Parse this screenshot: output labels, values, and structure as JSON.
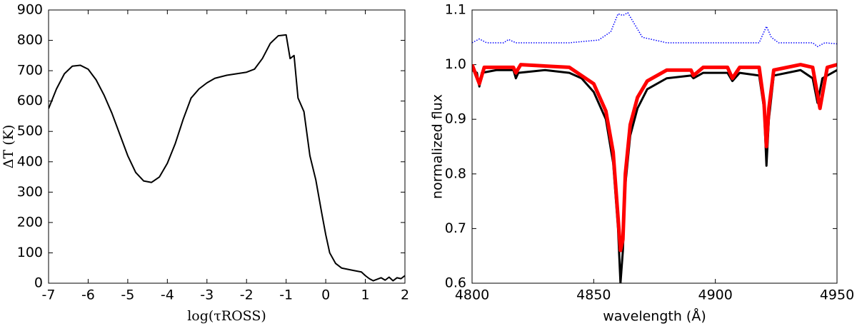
{
  "chart_data": [
    {
      "type": "line",
      "xlabel": "log(τROSS)",
      "ylabel": "ΔT (K)",
      "color": "#000000",
      "x": [
        -7,
        -6.8,
        -6.6,
        -6.4,
        -6.2,
        -6.0,
        -5.8,
        -5.6,
        -5.4,
        -5.2,
        -5.0,
        -4.8,
        -4.6,
        -4.4,
        -4.2,
        -4.0,
        -3.8,
        -3.6,
        -3.4,
        -3.2,
        -3.0,
        -2.8,
        -2.5,
        -2.0,
        -1.8,
        -1.6,
        -1.4,
        -1.2,
        -1.0,
        -0.9,
        -0.8,
        -0.7,
        -0.55,
        -0.4,
        -0.25,
        -0.1,
        0.0,
        0.1,
        0.25,
        0.4,
        0.7,
        0.9,
        1.0,
        1.1,
        1.2,
        1.4,
        1.5,
        1.6,
        1.7,
        1.8,
        1.9,
        2.0
      ],
      "values": [
        575,
        640,
        690,
        715,
        718,
        705,
        670,
        620,
        560,
        490,
        420,
        365,
        337,
        332,
        350,
        395,
        460,
        540,
        610,
        640,
        660,
        675,
        685,
        695,
        705,
        740,
        790,
        815,
        818,
        740,
        750,
        610,
        565,
        420,
        340,
        230,
        160,
        100,
        65,
        50,
        42,
        37,
        25,
        15,
        8,
        18,
        10,
        20,
        8,
        18,
        15,
        25
      ],
      "xlim": [
        -7,
        2
      ],
      "xticks": [
        -7,
        -6,
        -5,
        -4,
        -3,
        -2,
        -1,
        0,
        1,
        2
      ],
      "ylim": [
        0,
        900
      ],
      "yticks": [
        0,
        100,
        200,
        300,
        400,
        500,
        600,
        700,
        800,
        900
      ]
    },
    {
      "type": "line",
      "xlabel": "wavelength (Å)",
      "ylabel": "normalized flux",
      "series": [
        {
          "color": "#000000",
          "width": 3,
          "dash": "solid",
          "x": [
            4800,
            4802,
            4803,
            4804,
            4810,
            4817,
            4818,
            4819,
            4830,
            4840,
            4845,
            4850,
            4855,
            4858,
            4860,
            4861,
            4862,
            4863,
            4865,
            4868,
            4872,
            4880,
            4890,
            4891,
            4895,
            4905,
            4907,
            4910,
            4918,
            4920,
            4921,
            4922,
            4924,
            4935,
            4940,
            4942,
            4944,
            4950
          ],
          "values": [
            0.99,
            0.985,
            0.96,
            0.985,
            0.99,
            0.99,
            0.975,
            0.985,
            0.99,
            0.985,
            0.975,
            0.95,
            0.9,
            0.82,
            0.7,
            0.6,
            0.66,
            0.78,
            0.87,
            0.92,
            0.955,
            0.975,
            0.98,
            0.975,
            0.985,
            0.985,
            0.97,
            0.985,
            0.98,
            0.92,
            0.815,
            0.9,
            0.98,
            0.99,
            0.975,
            0.93,
            0.975,
            0.99
          ]
        },
        {
          "color": "#ff0000",
          "width": 5,
          "dash": "solid",
          "x": [
            4800,
            4803,
            4805,
            4817,
            4818,
            4820,
            4840,
            4850,
            4855,
            4858,
            4860,
            4861,
            4862,
            4863,
            4865,
            4868,
            4872,
            4880,
            4890,
            4891,
            4895,
            4905,
            4907,
            4910,
            4918,
            4920,
            4921,
            4922,
            4924,
            4935,
            4940,
            4943,
            4946,
            4950
          ],
          "values": [
            1.0,
            0.965,
            0.995,
            0.995,
            0.985,
            1.0,
            0.995,
            0.965,
            0.915,
            0.84,
            0.72,
            0.66,
            0.68,
            0.8,
            0.89,
            0.94,
            0.97,
            0.99,
            0.99,
            0.98,
            0.995,
            0.995,
            0.975,
            0.995,
            0.995,
            0.93,
            0.85,
            0.92,
            0.99,
            1.0,
            0.995,
            0.92,
            0.995,
            1.0
          ]
        },
        {
          "color": "#0000ff",
          "width": 1.5,
          "dash": "dotted",
          "x": [
            4800,
            4803,
            4806,
            4813,
            4815,
            4818,
            4840,
            4852,
            4857,
            4860,
            4862,
            4864,
            4866,
            4870,
            4880,
            4918,
            4920,
            4921,
            4923,
            4926,
            4940,
            4942,
            4945,
            4950
          ],
          "values": [
            1.04,
            1.047,
            1.04,
            1.04,
            1.046,
            1.04,
            1.04,
            1.045,
            1.06,
            1.093,
            1.09,
            1.095,
            1.08,
            1.05,
            1.04,
            1.04,
            1.06,
            1.07,
            1.05,
            1.04,
            1.04,
            1.033,
            1.04,
            1.038
          ]
        }
      ],
      "xlim": [
        4800,
        4950
      ],
      "xticks": [
        4800,
        4850,
        4900,
        4950
      ],
      "ylim": [
        0.6,
        1.1
      ],
      "yticks": [
        0.6,
        0.7,
        0.8,
        0.9,
        {
          "value": 1,
          "label": "1.0"
        },
        1.1
      ]
    }
  ]
}
